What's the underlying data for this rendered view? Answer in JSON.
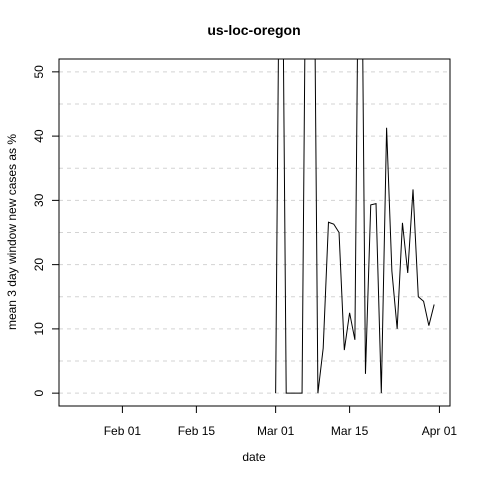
{
  "chart_data": {
    "type": "line",
    "title": "us-loc-oregon",
    "x_label": "date",
    "y_label": "mean  3  day window new cases as %",
    "x": [
      "Mar 01",
      "Mar 02",
      "Mar 03",
      "Mar 04",
      "Mar 05",
      "Mar 06",
      "Mar 07",
      "Mar 08",
      "Mar 09",
      "Mar 10",
      "Mar 11",
      "Mar 12",
      "Mar 13",
      "Mar 14",
      "Mar 15",
      "Mar 16",
      "Mar 17",
      "Mar 18",
      "Mar 19",
      "Mar 20",
      "Mar 21",
      "Mar 22",
      "Mar 23",
      "Mar 24",
      "Mar 25",
      "Mar 26",
      "Mar 27",
      "Mar 28",
      "Mar 29",
      "Mar 30",
      "Mar 31"
    ],
    "series": [
      {
        "color": "#000000",
        "values": [
          0,
          100,
          0,
          0,
          0,
          0,
          100,
          100,
          0,
          7,
          26.6,
          26.3,
          25,
          6.7,
          12.5,
          8.3,
          100,
          3,
          29.3,
          29.5,
          0,
          41.3,
          19,
          10,
          26.5,
          18.7,
          31.7,
          15,
          14.3,
          10.5,
          13.8
        ]
      }
    ],
    "xlim": [
      "Jan 20",
      "Apr 03"
    ],
    "xticks": [
      "Feb 01",
      "Feb 15",
      "Mar 01",
      "Mar 15",
      "Apr 01"
    ],
    "ylim": [
      -2,
      52
    ],
    "yticks": [
      0,
      10,
      20,
      30,
      40,
      50
    ],
    "ygrid": [
      0,
      5,
      10,
      15,
      20,
      25,
      30,
      35,
      40,
      45,
      50
    ],
    "grid": true
  }
}
